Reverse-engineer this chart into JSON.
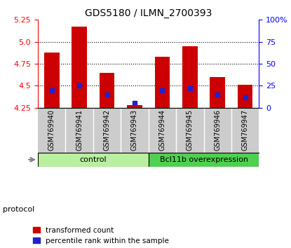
{
  "title": "GDS5180 / ILMN_2700393",
  "samples": [
    "GSM769940",
    "GSM769941",
    "GSM769942",
    "GSM769943",
    "GSM769944",
    "GSM769945",
    "GSM769946",
    "GSM769947"
  ],
  "red_values": [
    4.88,
    5.17,
    4.65,
    4.28,
    4.83,
    4.95,
    4.6,
    4.51
  ],
  "blue_pct": [
    20,
    25,
    15,
    5,
    20,
    22,
    15,
    12
  ],
  "ymin": 4.25,
  "ymax": 5.25,
  "y_left_ticks": [
    4.25,
    4.5,
    4.75,
    5.0,
    5.25
  ],
  "y_right_ticks": [
    0,
    25,
    50,
    75,
    100
  ],
  "groups": [
    {
      "label": "control",
      "start": 0,
      "end": 3,
      "color": "#b8f0a0"
    },
    {
      "label": "Bcl11b overexpression",
      "start": 4,
      "end": 7,
      "color": "#50d050"
    }
  ],
  "protocol_label": "protocol",
  "bar_color": "#cc0000",
  "blue_color": "#2222cc",
  "bar_bottom": 4.25,
  "legend_items": [
    {
      "label": "transformed count",
      "color": "#cc0000"
    },
    {
      "label": "percentile rank within the sample",
      "color": "#2222cc"
    }
  ],
  "sample_bg_color": "#cccccc",
  "bar_width": 0.55
}
